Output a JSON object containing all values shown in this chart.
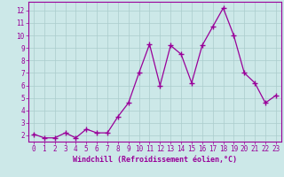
{
  "x": [
    0,
    1,
    2,
    3,
    4,
    5,
    6,
    7,
    8,
    9,
    10,
    11,
    12,
    13,
    14,
    15,
    16,
    17,
    18,
    19,
    20,
    21,
    22,
    23
  ],
  "y": [
    2.1,
    1.8,
    1.8,
    2.2,
    1.8,
    2.5,
    2.2,
    2.2,
    3.5,
    4.6,
    7.0,
    9.3,
    6.0,
    9.2,
    8.5,
    6.2,
    9.2,
    10.7,
    12.2,
    10.0,
    7.0,
    6.2,
    4.6,
    5.2
  ],
  "line_color": "#990099",
  "marker": "+",
  "marker_size": 4,
  "xlabel": "Windchill (Refroidissement éolien,°C)",
  "xlim": [
    -0.5,
    23.5
  ],
  "ylim": [
    1.5,
    12.7
  ],
  "yticks": [
    2,
    3,
    4,
    5,
    6,
    7,
    8,
    9,
    10,
    11,
    12
  ],
  "xticks": [
    0,
    1,
    2,
    3,
    4,
    5,
    6,
    7,
    8,
    9,
    10,
    11,
    12,
    13,
    14,
    15,
    16,
    17,
    18,
    19,
    20,
    21,
    22,
    23
  ],
  "bg_color": "#cce8e8",
  "grid_color": "#aacccc",
  "tick_label_fontsize": 5.5,
  "xlabel_fontsize": 6.0,
  "line_width": 0.9,
  "marker_edge_width": 1.0
}
